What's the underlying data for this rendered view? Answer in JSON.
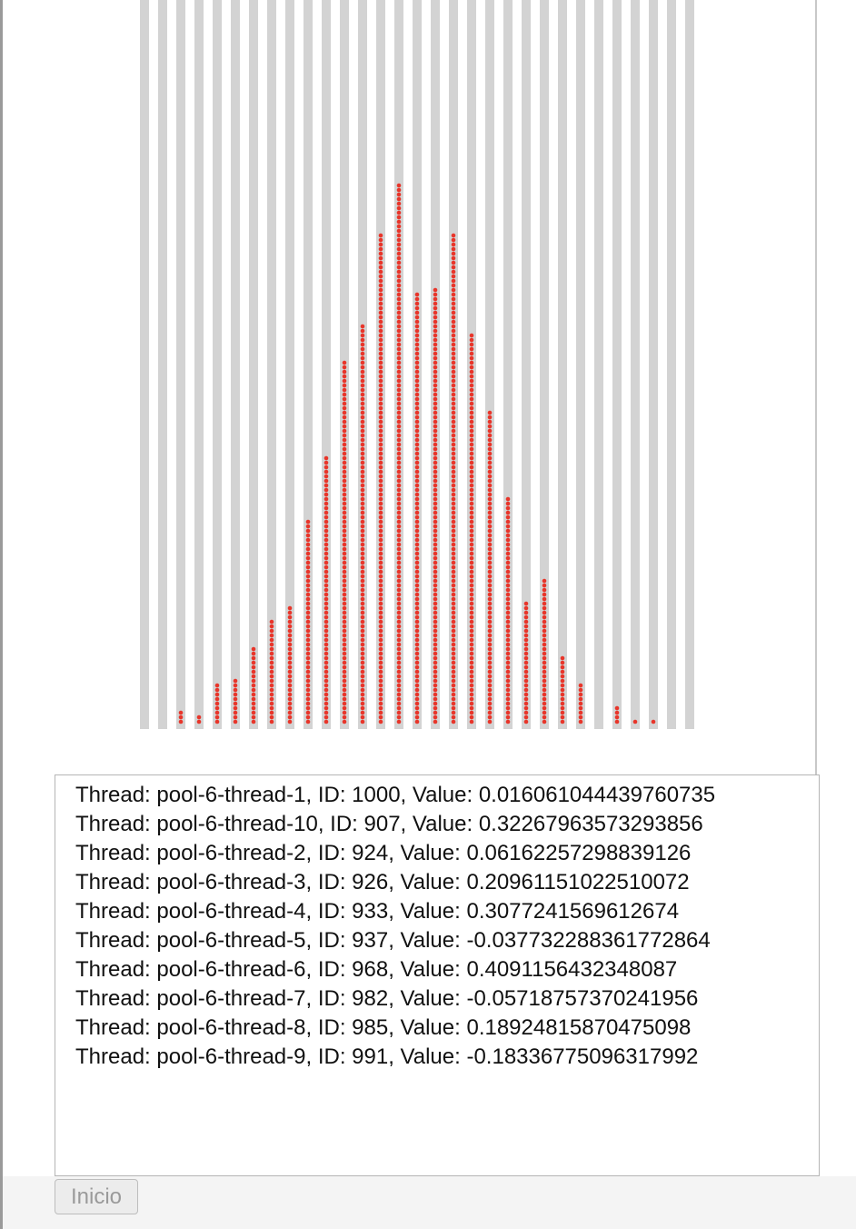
{
  "histogram": {
    "counts": [
      0,
      0,
      3,
      2,
      9,
      10,
      17,
      23,
      26,
      45,
      59,
      80,
      88,
      108,
      119,
      95,
      96,
      108,
      86,
      69,
      50,
      27,
      32,
      15,
      9,
      0,
      4,
      1,
      1,
      0,
      0
    ]
  },
  "log": {
    "lines": [
      "Thread: pool-6-thread-1, ID: 1000, Value: 0.016061044439760735",
      "Thread: pool-6-thread-10, ID: 907, Value: 0.32267963573293856",
      "Thread: pool-6-thread-2, ID: 924, Value: 0.06162257298839126",
      "Thread: pool-6-thread-3, ID: 926, Value: 0.20961151022510072",
      "Thread: pool-6-thread-4, ID: 933, Value: 0.3077241569612674",
      "Thread: pool-6-thread-5, ID: 937, Value: -0.037732288361772864",
      "Thread: pool-6-thread-6, ID: 968, Value: 0.4091156432348087",
      "Thread: pool-6-thread-7, ID: 982, Value: -0.05718757370241956",
      "Thread: pool-6-thread-8, ID: 985, Value: 0.18924815870475098",
      "Thread: pool-6-thread-9, ID: 991, Value: -0.18336775096317992"
    ]
  },
  "button": {
    "label": "Inicio"
  }
}
